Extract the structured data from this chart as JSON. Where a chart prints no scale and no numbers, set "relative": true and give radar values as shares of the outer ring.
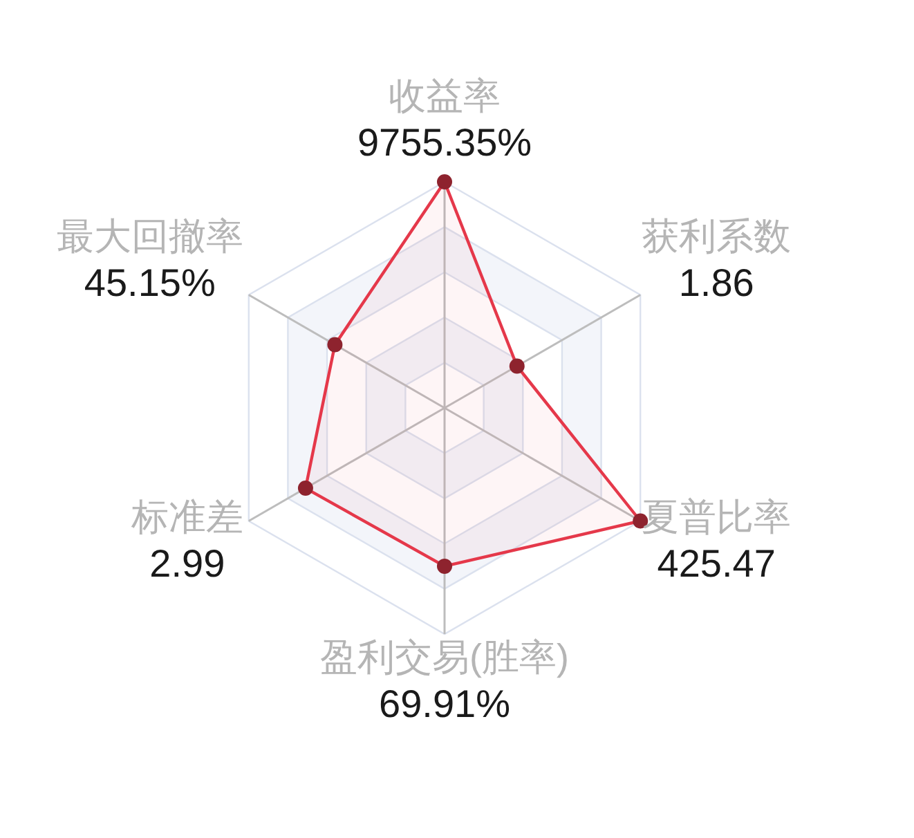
{
  "chart_data": {
    "type": "radar",
    "categories": [
      "收益率\n9755.35%",
      "获利系数\n1.86",
      "夏普比率\n425.47",
      "盈利交易(胜率)\n69.91%",
      "标准差\n2.99",
      "最大回撤率\n45.15%"
    ],
    "relative": true,
    "grid": true,
    "marker": "circle",
    "series": [
      {
        "color": "#e5384a",
        "values": [
          1,
          0.37,
          1,
          0.7,
          0.71,
          0.56
        ]
      }
    ]
  }
}
